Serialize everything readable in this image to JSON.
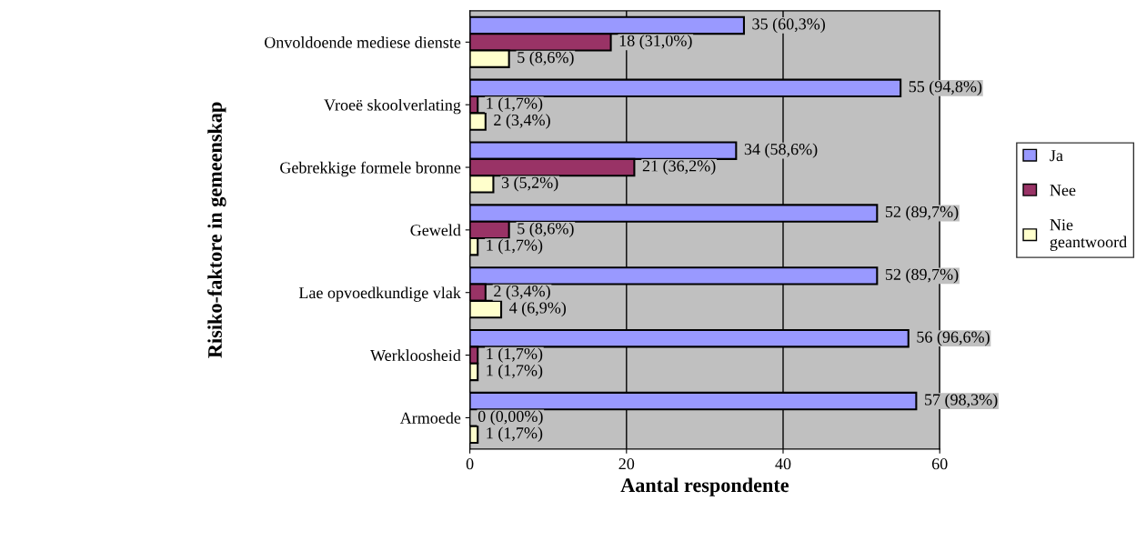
{
  "chart_data": {
    "type": "bar",
    "orientation": "horizontal",
    "xlabel": "Aantal respondente",
    "ylabel": "Risiko-faktore in gemeenskap",
    "categories": [
      "Onvoldoende mediese dienste",
      "Vroeë skoolverlating",
      "Gebrekkige formele bronne",
      "Geweld",
      "Lae opvoedkundige vlak",
      "Werkloosheid",
      "Armoede"
    ],
    "series": [
      {
        "name": "Ja",
        "color": "#9999ff",
        "values": [
          35,
          55,
          34,
          52,
          52,
          56,
          57
        ],
        "value_labels": [
          "35 (60,3%)",
          "55 (94,8%)",
          "34 (58,6%)",
          "52 (89,7%)",
          "52 (89,7%)",
          "56 (96,6%)",
          "57 (98,3%)"
        ]
      },
      {
        "name": "Nee",
        "color": "#993366",
        "values": [
          18,
          1,
          21,
          5,
          2,
          1,
          0
        ],
        "value_labels": [
          "18 (31,0%)",
          "1 (1,7%)",
          "21 (36,2%)",
          "5 (8,6%)",
          "2 (3,4%)",
          "1 (1,7%)",
          "0 (0,00%)"
        ]
      },
      {
        "name": "Nie geantwoord",
        "color": "#ffffcc",
        "values": [
          5,
          2,
          3,
          1,
          4,
          1,
          1
        ],
        "value_labels": [
          "5 (8,6%)",
          "2 (3,4%)",
          "3 (5,2%)",
          "1 (1,7%)",
          "4 (6,9%)",
          "1 (1,7%)",
          "1 (1,7%)"
        ]
      }
    ],
    "xlim": [
      0,
      60
    ],
    "xticks": [
      0,
      20,
      40,
      60
    ],
    "grid": "x",
    "legend": "right"
  }
}
